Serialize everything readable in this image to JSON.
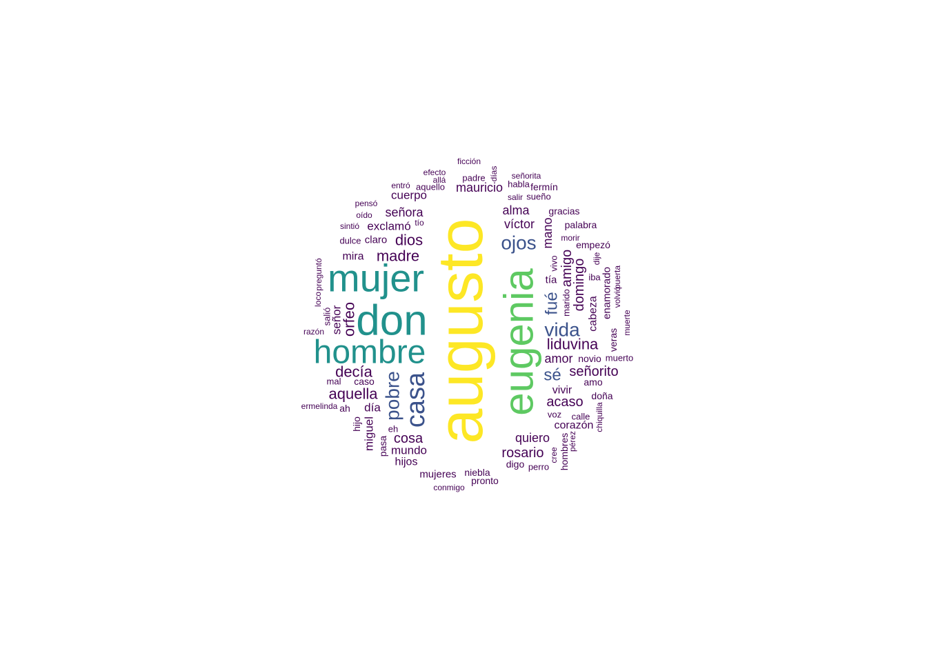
{
  "colors": {
    "yellow": "#fde725",
    "green": "#5ec962",
    "teal": "#21918c",
    "blue": "#3b528b",
    "purple": "#440154"
  },
  "words": [
    {
      "text": "augusto",
      "color": "yellow",
      "rot": -90
    },
    {
      "text": "eugenia",
      "color": "green",
      "rot": -90
    },
    {
      "text": "don",
      "color": "teal",
      "rot": 0
    },
    {
      "text": "mujer",
      "color": "teal",
      "rot": 0
    },
    {
      "text": "hombre",
      "color": "teal",
      "rot": 0
    },
    {
      "text": "casa",
      "color": "blue",
      "rot": -90
    },
    {
      "text": "ojos",
      "color": "blue",
      "rot": 0
    },
    {
      "text": "vida",
      "color": "blue",
      "rot": 0
    },
    {
      "text": "pobre",
      "color": "blue",
      "rot": -90
    },
    {
      "text": "sé",
      "color": "blue",
      "rot": 0
    },
    {
      "text": "fué",
      "color": "blue",
      "rot": -90
    },
    {
      "text": "liduvina",
      "color": "purple",
      "rot": 0
    },
    {
      "text": "dios",
      "color": "purple",
      "rot": 0
    },
    {
      "text": "madre",
      "color": "purple",
      "rot": 0
    },
    {
      "text": "decía",
      "color": "purple",
      "rot": 0
    },
    {
      "text": "aquella",
      "color": "purple",
      "rot": 0
    },
    {
      "text": "orfeo",
      "color": "purple",
      "rot": -90
    },
    {
      "text": "acaso",
      "color": "purple",
      "rot": 0
    },
    {
      "text": "señorito",
      "color": "purple",
      "rot": 0
    },
    {
      "text": "rosario",
      "color": "purple",
      "rot": 0
    },
    {
      "text": "cosa",
      "color": "purple",
      "rot": 0
    },
    {
      "text": "amigo",
      "color": "purple",
      "rot": -90
    },
    {
      "text": "domingo",
      "color": "purple",
      "rot": -90
    },
    {
      "text": "señora",
      "color": "purple",
      "rot": 0
    },
    {
      "text": "víctor",
      "color": "purple",
      "rot": 0
    },
    {
      "text": "alma",
      "color": "purple",
      "rot": 0
    },
    {
      "text": "quiero",
      "color": "purple",
      "rot": 0
    },
    {
      "text": "amor",
      "color": "purple",
      "rot": 0
    },
    {
      "text": "mauricio",
      "color": "purple",
      "rot": 0
    },
    {
      "text": "mano",
      "color": "purple",
      "rot": -90
    },
    {
      "text": "señor",
      "color": "purple",
      "rot": -90
    },
    {
      "text": "cuerpo",
      "color": "purple",
      "rot": 0
    },
    {
      "text": "exclamó",
      "color": "purple",
      "rot": 0
    },
    {
      "text": "mundo",
      "color": "purple",
      "rot": 0
    },
    {
      "text": "miguel",
      "color": "purple",
      "rot": -90
    },
    {
      "text": "día",
      "color": "purple",
      "rot": 0
    },
    {
      "text": "hijos",
      "color": "purple",
      "rot": 0
    },
    {
      "text": "mira",
      "color": "purple",
      "rot": 0
    },
    {
      "text": "vivir",
      "color": "purple",
      "rot": 0
    },
    {
      "text": "cabeza",
      "color": "purple",
      "rot": -90
    },
    {
      "text": "corazón",
      "color": "purple",
      "rot": 0
    },
    {
      "text": "mujeres",
      "color": "purple",
      "rot": 0
    },
    {
      "text": "claro",
      "color": "purple",
      "rot": 0
    },
    {
      "text": "tía",
      "color": "purple",
      "rot": 0
    },
    {
      "text": "enamorado",
      "color": "purple",
      "rot": -90
    },
    {
      "text": "niebla",
      "color": "purple",
      "rot": 0
    },
    {
      "text": "pronto",
      "color": "purple",
      "rot": 0
    },
    {
      "text": "novio",
      "color": "purple",
      "rot": 0
    },
    {
      "text": "palabra",
      "color": "purple",
      "rot": 0
    },
    {
      "text": "empezó",
      "color": "purple",
      "rot": 0
    },
    {
      "text": "gracias",
      "color": "purple",
      "rot": 0
    },
    {
      "text": "fermín",
      "color": "purple",
      "rot": 0
    },
    {
      "text": "digo",
      "color": "purple",
      "rot": 0
    },
    {
      "text": "hombres",
      "color": "purple",
      "rot": -90
    },
    {
      "text": "doña",
      "color": "purple",
      "rot": 0
    },
    {
      "text": "amo",
      "color": "purple",
      "rot": 0
    },
    {
      "text": "pasa",
      "color": "purple",
      "rot": -90
    },
    {
      "text": "ah",
      "color": "purple",
      "rot": 0
    },
    {
      "text": "caso",
      "color": "purple",
      "rot": 0
    },
    {
      "text": "hijo",
      "color": "purple",
      "rot": -90
    },
    {
      "text": "veras",
      "color": "purple",
      "rot": -90
    },
    {
      "text": "muerto",
      "color": "purple",
      "rot": 0
    },
    {
      "text": "calle",
      "color": "purple",
      "rot": 0
    },
    {
      "text": "voz",
      "color": "purple",
      "rot": 0
    },
    {
      "text": "perro",
      "color": "purple",
      "rot": 0
    },
    {
      "text": "habla",
      "color": "purple",
      "rot": 0
    },
    {
      "text": "salió",
      "color": "purple",
      "rot": -90
    },
    {
      "text": "marido",
      "color": "purple",
      "rot": -90
    },
    {
      "text": "vivo",
      "color": "purple",
      "rot": -90
    },
    {
      "text": "iba",
      "color": "purple",
      "rot": 0
    },
    {
      "text": "padre",
      "color": "purple",
      "rot": 0
    },
    {
      "text": "aquello",
      "color": "purple",
      "rot": 0
    },
    {
      "text": "sueño",
      "color": "purple",
      "rot": 0
    },
    {
      "text": "mal",
      "color": "purple",
      "rot": 0
    },
    {
      "text": "dulce",
      "color": "purple",
      "rot": 0
    },
    {
      "text": "eh",
      "color": "purple",
      "rot": 0
    },
    {
      "text": "pensó",
      "color": "purple",
      "rot": 0
    },
    {
      "text": "oído",
      "color": "purple",
      "rot": 0
    },
    {
      "text": "sintió",
      "color": "purple",
      "rot": 0
    },
    {
      "text": "tío",
      "color": "purple",
      "rot": 0
    },
    {
      "text": "entró",
      "color": "purple",
      "rot": 0
    },
    {
      "text": "allá",
      "color": "purple",
      "rot": 0
    },
    {
      "text": "efecto",
      "color": "purple",
      "rot": 0
    },
    {
      "text": "ficción",
      "color": "purple",
      "rot": 0
    },
    {
      "text": "días",
      "color": "purple",
      "rot": -90
    },
    {
      "text": "señorita",
      "color": "purple",
      "rot": 0
    },
    {
      "text": "salir",
      "color": "purple",
      "rot": 0
    },
    {
      "text": "morir",
      "color": "purple",
      "rot": 0
    },
    {
      "text": "dije",
      "color": "purple",
      "rot": -90
    },
    {
      "text": "puerta",
      "color": "purple",
      "rot": -90
    },
    {
      "text": "volvió",
      "color": "purple",
      "rot": -90
    },
    {
      "text": "muerte",
      "color": "purple",
      "rot": -90
    },
    {
      "text": "loco",
      "color": "purple",
      "rot": -90
    },
    {
      "text": "preguntó",
      "color": "purple",
      "rot": -90
    },
    {
      "text": "razón",
      "color": "purple",
      "rot": 0
    },
    {
      "text": "ermelinda",
      "color": "purple",
      "rot": 0
    },
    {
      "text": "conmigo",
      "color": "purple",
      "rot": 0
    },
    {
      "text": "cree",
      "color": "purple",
      "rot": -90
    },
    {
      "text": "pérez",
      "color": "purple",
      "rot": -90
    },
    {
      "text": "chiquilla",
      "color": "purple",
      "rot": -90
    }
  ]
}
